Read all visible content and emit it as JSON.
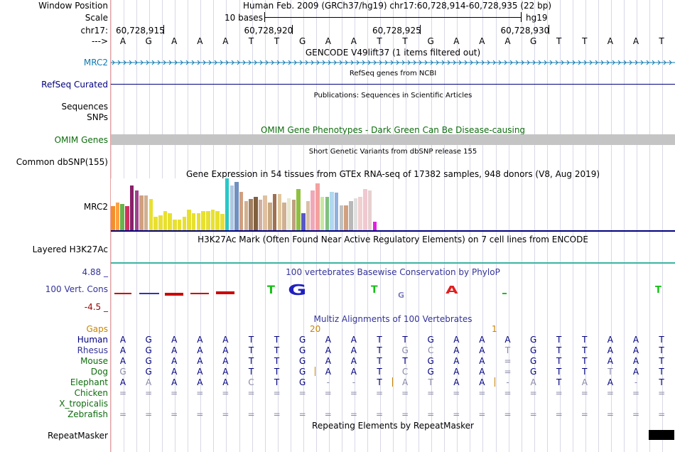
{
  "colors": {
    "navy": "#000080",
    "gencode_blue": "#0e7ab2",
    "omim_green": "#0e6d0e",
    "gaps_orange": "#c88400",
    "cons_blue": "#333399",
    "cons_red": "#990000",
    "grid": "#d8d8e8",
    "omim_bar": "#c4c4c4",
    "h3k27ac": "#3cb3a0"
  },
  "header": {
    "window_position_label": "Window Position",
    "window_position_text": "Human Feb. 2009 (GRCh37/hg19)   chr17:60,728,914-60,728,935 (22 bp)",
    "scale_label": "Scale",
    "scale_text": "10 bases",
    "scale_assembly": "hg19",
    "chrom_label": "chr17:",
    "positions": [
      "60,728,915",
      "60,728,920",
      "60,728,925",
      "60,728,930"
    ],
    "strand_label": "--->",
    "bases": [
      "A",
      "G",
      "A",
      "A",
      "A",
      "T",
      "T",
      "G",
      "A",
      "A",
      "T",
      "T",
      "G",
      "A",
      "A",
      "A",
      "G",
      "T",
      "T",
      "A",
      "A",
      "T"
    ]
  },
  "tracks": {
    "gencode_title": "GENCODE V49lift37 (1 items filtered out)",
    "gencode_label": "MRC2",
    "refseq_title": "RefSeq genes from NCBI",
    "refseq_label": "RefSeq Curated",
    "pubs_title": "Publications: Sequences in Scientific Articles",
    "sequences_label": "Sequences",
    "snps_label": "SNPs",
    "omim_title": "OMIM Gene Phenotypes - Dark Green Can Be Disease-causing",
    "omim_label": "OMIM Genes",
    "dbsnp_title": "Short Genetic Variants from dbSNP release 155",
    "dbsnp_label": "Common dbSNP(155)",
    "gtex_title": "Gene Expression in 54 tissues from GTEx RNA-seq of 17382 samples, 948 donors (V8, Aug 2019)",
    "gtex_label": "MRC2",
    "h3k27ac_title": "H3K27Ac Mark (Often Found Near Active Regulatory Elements) on 7 cell lines from ENCODE",
    "h3k27ac_label": "Layered H3K27Ac",
    "cons_title": "100 vertebrates Basewise Conservation by PhyloP",
    "cons_label": "100 Vert. Cons",
    "cons_max": "4.88 _",
    "cons_min": "-4.5 _",
    "cons_letters": [
      "T",
      "G",
      "T",
      "G",
      "A",
      "T"
    ],
    "multiz_title": "Multiz Alignments of 100 Vertebrates",
    "gaps_label": "Gaps",
    "gap_number_1": "20",
    "gap_number_2": "1",
    "repeat_title": "Repeating Elements by RepeatMasker",
    "repeat_label": "RepeatMasker"
  },
  "gtex_values": [
    35,
    40,
    38,
    35,
    65,
    58,
    50,
    50,
    45,
    20,
    22,
    28,
    25,
    15,
    15,
    20,
    30,
    25,
    25,
    28,
    28,
    30,
    28,
    24,
    75,
    65,
    70,
    55,
    42,
    45,
    48,
    44,
    50,
    40,
    52,
    52,
    40,
    46,
    44,
    60,
    25,
    42,
    58,
    68,
    48,
    48,
    55,
    54,
    36,
    36,
    42,
    46,
    48,
    60,
    58,
    12
  ],
  "gtex_colors": [
    "#f28e2b",
    "#ffa040",
    "#6ab34a",
    "#d03060",
    "#8a1f6a",
    "#a0428c",
    "#d0a080",
    "#d0b090",
    "#e8e030",
    "#e8e030",
    "#e8e030",
    "#e8e030",
    "#e8e030",
    "#e8e030",
    "#e8e030",
    "#e8e030",
    "#e8e030",
    "#e8e030",
    "#e8e030",
    "#e8e030",
    "#e8e030",
    "#e8e030",
    "#e8e030",
    "#e8e030",
    "#28c8c8",
    "#b0c8e0",
    "#7090c0",
    "#d0a080",
    "#d0b090",
    "#a08060",
    "#806040",
    "#d0b0a0",
    "#e0c0a0",
    "#c8a880",
    "#a07050",
    "#e0c8a0",
    "#d0b090",
    "#e8e8d0",
    "#c0a080",
    "#90c040",
    "#5858c8",
    "#d8c0a8",
    "#f0a8b8",
    "#f4a0a0",
    "#c8e8a0",
    "#80c080",
    "#b0d8f0",
    "#90b0e0",
    "#c0c0c0",
    "#d0a080",
    "#b8b8b8",
    "#e0e0e0",
    "#f0d0d0",
    "#f0c8d0",
    "#e8d0d0",
    "#e020e0"
  ],
  "alignments": [
    {
      "species": "Human",
      "bases": [
        "A",
        "G",
        "A",
        "A",
        "A",
        "T",
        "T",
        "G",
        "A",
        "A",
        "T",
        "T",
        "G",
        "A",
        "A",
        "A",
        "G",
        "T",
        "T",
        "A",
        "A",
        "T"
      ]
    },
    {
      "species": "Rhesus",
      "bases": [
        "A",
        "G",
        "A",
        "A",
        "A",
        "T",
        "T",
        "G",
        "A",
        "A",
        "T",
        "G",
        "C",
        "A",
        "A",
        "T",
        "G",
        "T",
        "T",
        "A",
        "A",
        "T"
      ]
    },
    {
      "species": "Mouse",
      "bases": [
        "A",
        "G",
        "A",
        "A",
        "A",
        "T",
        "T",
        "G",
        "A",
        "A",
        "T",
        "T",
        "G",
        "A",
        "A",
        "=",
        "G",
        "T",
        "T",
        "A",
        "A",
        "T"
      ]
    },
    {
      "species": "Dog",
      "bases": [
        "G",
        "G",
        "A",
        "A",
        "A",
        "T",
        "T",
        "G",
        "A",
        "A",
        "T",
        "C",
        "G",
        "A",
        "A",
        "=",
        "G",
        "T",
        "T",
        "T",
        "A",
        "T"
      ]
    },
    {
      "species": "Elephant",
      "bases": [
        "A",
        "A",
        "A",
        "A",
        "A",
        "C",
        "T",
        "G",
        "-",
        "-",
        "T",
        "A",
        "T",
        "A",
        "A",
        "-",
        "A",
        "T",
        "A",
        "A",
        "-",
        "T"
      ]
    },
    {
      "species": "Chicken",
      "bases": [
        "=",
        "=",
        "=",
        "=",
        "=",
        "=",
        "=",
        "=",
        "=",
        "=",
        "=",
        "=",
        "=",
        "=",
        "=",
        "=",
        "=",
        "=",
        "=",
        "=",
        "=",
        "="
      ]
    },
    {
      "species": "X_tropicalis",
      "bases": [
        "",
        "",
        "",
        "",
        "",
        "",
        "",
        "",
        "",
        "",
        "",
        "",
        "",
        "",
        "",
        "",
        "",
        "",
        "",
        "",
        "",
        ""
      ]
    },
    {
      "species": "Zebrafish",
      "bases": [
        "=",
        "=",
        "=",
        "=",
        "=",
        "=",
        "=",
        "=",
        "=",
        "=",
        "=",
        "=",
        "=",
        "=",
        "=",
        "=",
        "=",
        "=",
        "=",
        "=",
        "=",
        "="
      ]
    }
  ]
}
